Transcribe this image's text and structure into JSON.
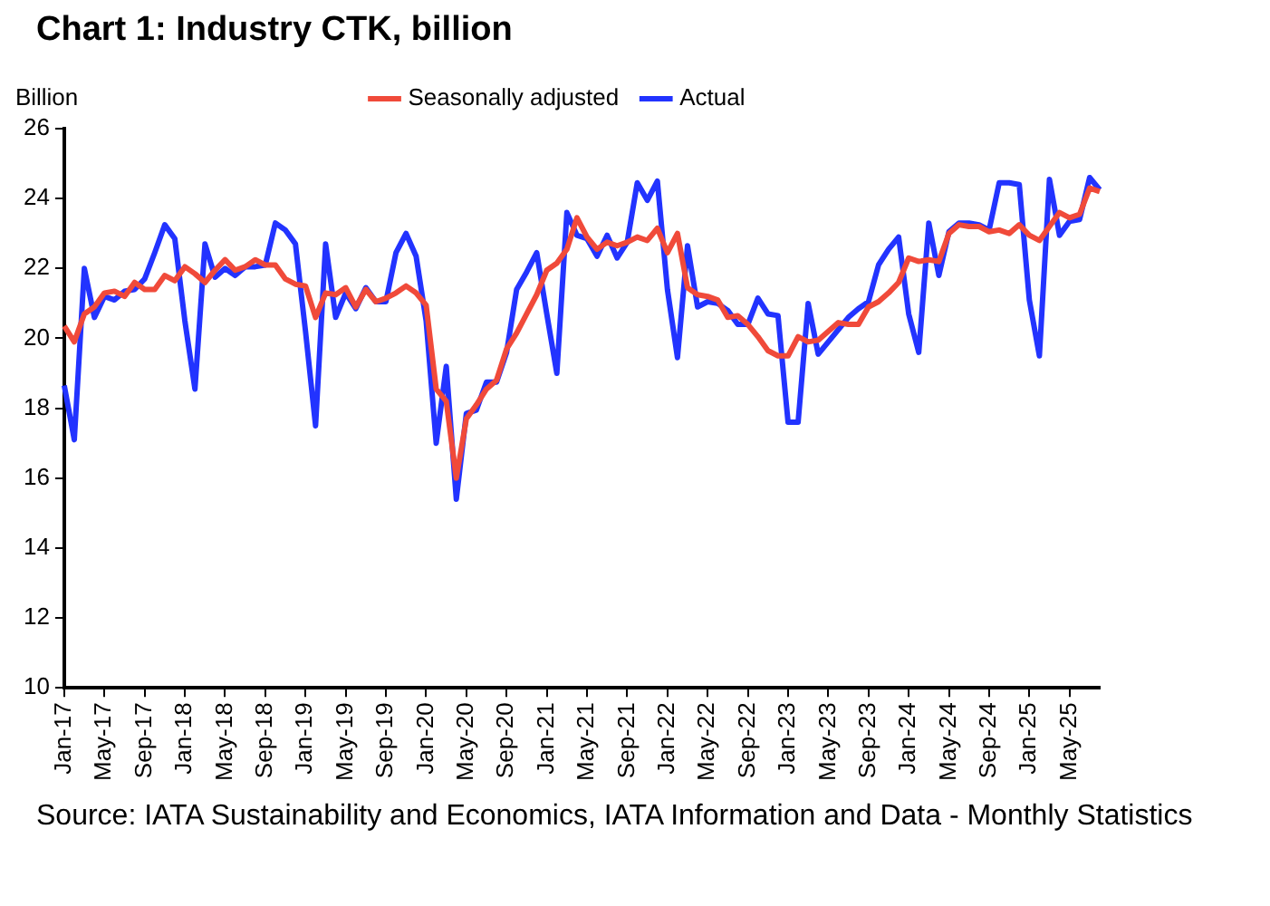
{
  "chart_data": {
    "type": "line",
    "title": "Chart 1: Industry CTK, billion",
    "ylabel": "Billion",
    "categories": [
      "Jan-17",
      null,
      null,
      null,
      "May-17",
      null,
      null,
      null,
      "Sep-17",
      null,
      null,
      null,
      "Jan-18",
      null,
      null,
      null,
      "May-18",
      null,
      null,
      null,
      "Sep-18",
      null,
      null,
      null,
      "Jan-19",
      null,
      null,
      null,
      "May-19",
      null,
      null,
      null,
      "Sep-19",
      null,
      null,
      null,
      "Jan-20",
      null,
      null,
      null,
      "May-20",
      null,
      null,
      null,
      "Sep-20",
      null,
      null,
      null,
      "Jan-21",
      null,
      null,
      null,
      "May-21",
      null,
      null,
      null,
      "Sep-21",
      null,
      null,
      null,
      "Jan-22",
      null,
      null,
      null,
      "May-22",
      null,
      null,
      null,
      "Sep-22",
      null,
      null,
      null,
      "Jan-23",
      null,
      null,
      null,
      "May-23",
      null,
      null,
      null,
      "Sep-23",
      null,
      null,
      null,
      "Jan-24",
      null,
      null,
      null,
      "May-24",
      null,
      null,
      null,
      "Sep-24",
      null,
      null,
      null,
      "Jan-25",
      null,
      null,
      null,
      "May-25",
      null,
      null,
      null
    ],
    "series": [
      {
        "name": "Actual",
        "color": "#2233ff",
        "values": [
          18.65,
          17.1,
          22.0,
          20.6,
          21.2,
          21.1,
          21.35,
          21.4,
          21.7,
          22.45,
          23.25,
          22.85,
          20.5,
          18.55,
          22.7,
          21.75,
          22.0,
          21.8,
          22.05,
          22.05,
          22.1,
          23.3,
          23.1,
          22.7,
          20.2,
          17.5,
          22.7,
          20.6,
          21.3,
          20.85,
          21.45,
          21.05,
          21.05,
          22.45,
          23.0,
          22.35,
          20.5,
          17.0,
          19.2,
          15.4,
          17.85,
          17.95,
          18.75,
          18.75,
          19.6,
          21.4,
          21.9,
          22.45,
          20.7,
          19.0,
          23.6,
          22.95,
          22.85,
          22.35,
          22.95,
          22.3,
          22.75,
          24.45,
          23.95,
          24.5,
          21.4,
          19.45,
          22.65,
          20.9,
          21.05,
          21.0,
          20.8,
          20.4,
          20.4,
          21.15,
          20.7,
          20.65,
          17.6,
          17.6,
          21.0,
          19.55,
          19.9,
          20.25,
          20.6,
          20.85,
          21.05,
          22.1,
          22.55,
          22.9,
          20.7,
          19.6,
          23.3,
          21.8,
          23.05,
          23.3,
          23.3,
          23.25,
          23.1,
          24.45,
          24.45,
          24.4,
          21.1,
          19.5,
          24.55,
          22.95,
          23.35,
          23.4,
          24.6,
          24.25
        ]
      },
      {
        "name": "Seasonally adjusted",
        "color": "#f04a3a",
        "values": [
          20.35,
          19.9,
          20.7,
          20.9,
          21.3,
          21.35,
          21.2,
          21.6,
          21.4,
          21.4,
          21.8,
          21.65,
          22.05,
          21.85,
          21.6,
          21.95,
          22.25,
          21.95,
          22.05,
          22.25,
          22.1,
          22.1,
          21.7,
          21.55,
          21.5,
          20.6,
          21.3,
          21.25,
          21.45,
          20.9,
          21.4,
          21.05,
          21.15,
          21.3,
          21.5,
          21.3,
          20.95,
          18.55,
          18.2,
          16.0,
          17.7,
          18.1,
          18.55,
          18.8,
          19.7,
          20.15,
          20.7,
          21.25,
          21.95,
          22.15,
          22.55,
          23.45,
          22.9,
          22.55,
          22.75,
          22.65,
          22.75,
          22.9,
          22.8,
          23.15,
          22.45,
          23.0,
          21.45,
          21.25,
          21.2,
          21.1,
          20.6,
          20.65,
          20.4,
          20.05,
          19.65,
          19.5,
          19.5,
          20.05,
          19.9,
          19.95,
          20.2,
          20.45,
          20.4,
          20.4,
          20.9,
          21.05,
          21.3,
          21.6,
          22.3,
          22.2,
          22.25,
          22.2,
          23.0,
          23.25,
          23.2,
          23.2,
          23.05,
          23.1,
          23.0,
          23.25,
          22.95,
          22.8,
          23.2,
          23.6,
          23.45,
          23.55,
          24.3,
          24.2
        ]
      }
    ],
    "ylim": [
      10,
      26
    ],
    "yticks": [
      10,
      12,
      14,
      16,
      18,
      20,
      22,
      24,
      26
    ],
    "grid": false,
    "legend": "top",
    "marker": "none",
    "line_style": "solid",
    "annotations": [
      "Source: IATA Sustainability and Economics, IATA Information and Data - Monthly Statistics"
    ]
  }
}
